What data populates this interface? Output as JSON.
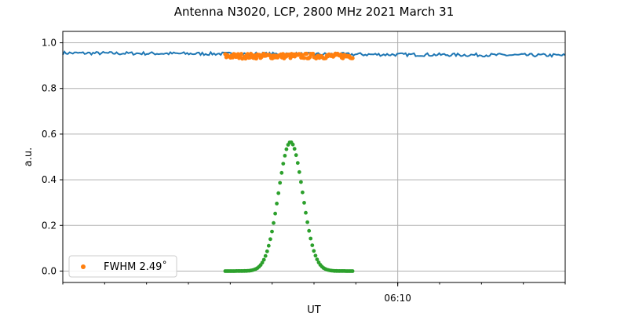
{
  "chart_data": {
    "type": "scatter",
    "title": "Antenna N3020, LCP, 2800 MHz 2021 March 31",
    "xlabel": "UT",
    "ylabel": "a.u.",
    "xlim_minutes": [
      -20,
      10
    ],
    "ylim": [
      -0.05,
      1.05
    ],
    "yticks": [
      0.0,
      0.2,
      0.4,
      0.6,
      0.8,
      1.0
    ],
    "ytick_labels": [
      "0.0",
      "0.2",
      "0.4",
      "0.6",
      "0.8",
      "1.0"
    ],
    "xticks": [
      {
        "minute": 0,
        "label": "06:10"
      }
    ],
    "grid": true,
    "legend": {
      "placement": "lower-left",
      "entries": [
        {
          "label": "FWHM 2.49$^{\\circ}$",
          "display": "FWHM 2.49˚",
          "color": "#ff7f0e"
        }
      ]
    },
    "series": [
      {
        "color": "#1f77b4",
        "style": "line",
        "x_range": [
          -20,
          10
        ],
        "points": 300,
        "level": 0.955,
        "level_end": 0.945
      },
      {
        "color": "#ff7f0e",
        "style": "points",
        "x_range": [
          -10.3,
          -2.7
        ],
        "points": 120,
        "level": 0.942
      },
      {
        "color": "#2ca02c",
        "style": "points",
        "x_range": [
          -10.3,
          -2.7
        ],
        "points": 80,
        "peak": 0.565,
        "center": -6.4,
        "fwhm_minutes": 1.7
      }
    ]
  }
}
